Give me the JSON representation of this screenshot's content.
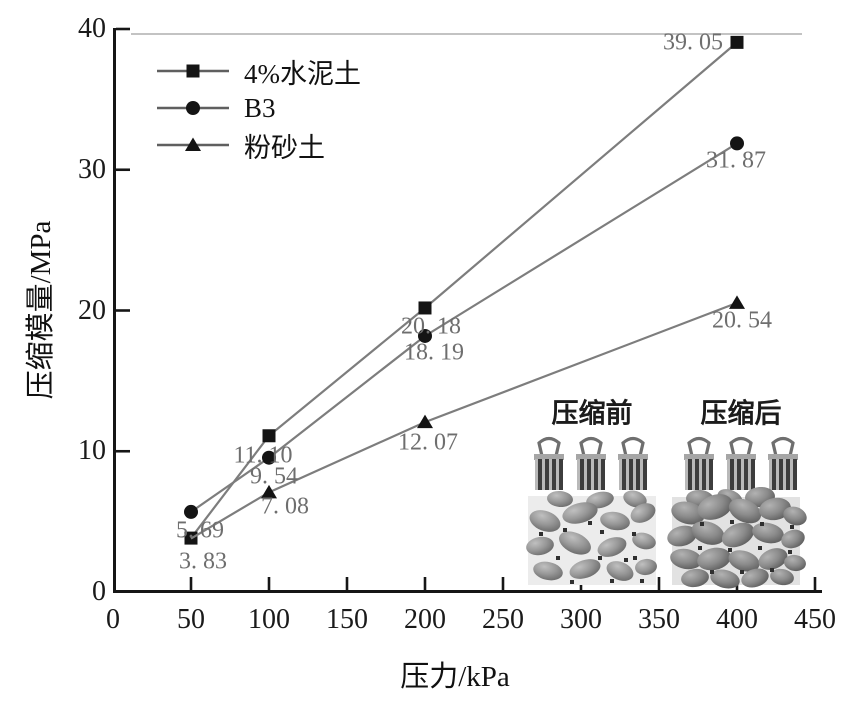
{
  "chart_data": {
    "type": "line",
    "title": "",
    "xlabel": "压力/kPa",
    "ylabel": "压缩模量/MPa",
    "x": [
      50,
      100,
      200,
      400
    ],
    "xlim": [
      0,
      450
    ],
    "ylim": [
      0,
      40
    ],
    "x_ticks": [
      0,
      50,
      100,
      150,
      200,
      250,
      300,
      350,
      400,
      450
    ],
    "y_ticks": [
      0,
      10,
      20,
      30,
      40
    ],
    "grid": "top border line only",
    "legend_position": "upper-left-inside",
    "series": [
      {
        "name": "4%水泥土",
        "marker": "square",
        "values": [
          3.83,
          11.1,
          20.18,
          39.05
        ],
        "point_labels": [
          "3. 83",
          "11. 10",
          "20. 18",
          "39. 05"
        ],
        "marker_visible": [
          true,
          true,
          true,
          true
        ]
      },
      {
        "name": "B3",
        "marker": "circle",
        "values": [
          5.69,
          9.54,
          18.19,
          31.87
        ],
        "point_labels": [
          "5. 69",
          "9. 54",
          "18. 19",
          "31. 87"
        ],
        "marker_visible": [
          true,
          true,
          true,
          true
        ]
      },
      {
        "name": "粉砂土",
        "marker": "triangle",
        "values": [
          3.8,
          7.08,
          12.07,
          20.54
        ],
        "point_labels": [
          "",
          "7. 08",
          "12. 07",
          "20. 54"
        ],
        "marker_visible": [
          false,
          true,
          true,
          true
        ]
      }
    ],
    "inset": {
      "before_label": "压缩前",
      "after_label": "压缩后"
    },
    "colors": {
      "series_line": "#7d7d7d",
      "marker": "#141414",
      "data_label": "#6e6e6e",
      "axis": "#161616",
      "top_border": "#c3c3c3"
    }
  }
}
